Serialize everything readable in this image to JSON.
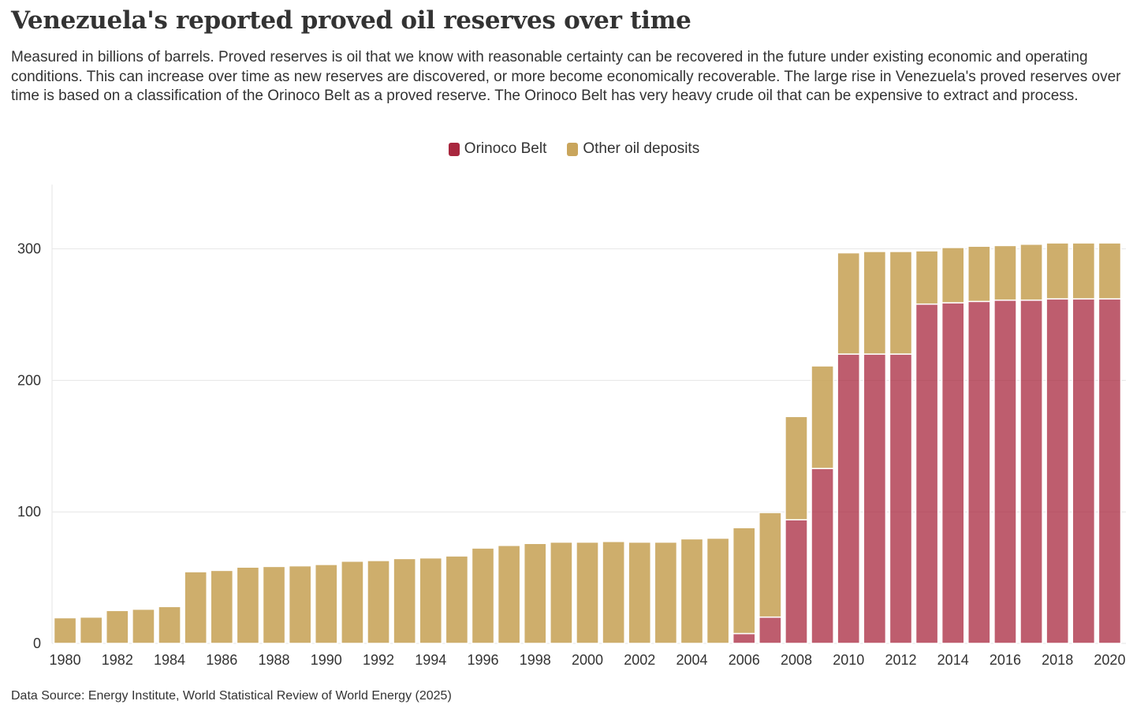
{
  "header": {
    "title": "Venezuela's reported proved oil reserves over time",
    "subtitle": "Measured in billions of barrels. Proved reserves is oil that we know with reasonable certainty can be recovered in the future under existing economic and operating conditions. This can increase over time as new reserves are discovered, or more become economically recoverable. The large rise in Venezuela's proved reserves over time is based on a classification of the Orinoco Belt as a proved reserve. The Orinoco Belt has very heavy crude oil that can be expensive to extract and process."
  },
  "legend": [
    {
      "label": "Orinoco Belt",
      "color": "#a8273e"
    },
    {
      "label": "Other oil deposits",
      "color": "#c9a55c"
    }
  ],
  "footer": {
    "source": "Data Source: Energy Institute, World Statistical Review of World Energy (2025)"
  },
  "chart_data": {
    "type": "bar",
    "stacked": true,
    "title": "Venezuela's reported proved oil reserves over time",
    "xlabel": "",
    "ylabel": "",
    "ylim": [
      0,
      350
    ],
    "yticks": [
      0,
      100,
      200,
      300
    ],
    "grid": true,
    "legend_position": "top-center",
    "x": [
      1980,
      1981,
      1982,
      1983,
      1984,
      1985,
      1986,
      1987,
      1988,
      1989,
      1990,
      1991,
      1992,
      1993,
      1994,
      1995,
      1996,
      1997,
      1998,
      1999,
      2000,
      2001,
      2002,
      2003,
      2004,
      2005,
      2006,
      2007,
      2008,
      2009,
      2010,
      2011,
      2012,
      2013,
      2014,
      2015,
      2016,
      2017,
      2018,
      2019,
      2020
    ],
    "xtick_labels": [
      "1980",
      "1982",
      "1984",
      "1986",
      "1988",
      "1990",
      "1992",
      "1994",
      "1996",
      "1998",
      "2000",
      "2002",
      "2004",
      "2006",
      "2008",
      "2010",
      "2012",
      "2014",
      "2016",
      "2018",
      "2020"
    ],
    "series": [
      {
        "name": "Orinoco Belt",
        "color": "#a8273e",
        "values": [
          0,
          0,
          0,
          0,
          0,
          0,
          0,
          0,
          0,
          0,
          0,
          0,
          0,
          0,
          0,
          0,
          0,
          0,
          0,
          0,
          0,
          0,
          0,
          0,
          0,
          0,
          7.5,
          20,
          94,
          133,
          220,
          220,
          220,
          258,
          259,
          260,
          261,
          261,
          262,
          262,
          262
        ]
      },
      {
        "name": "Other oil deposits",
        "color": "#c9a55c",
        "values": [
          19.5,
          20,
          25,
          26,
          28,
          54.5,
          55.5,
          58,
          58.5,
          59,
          60,
          62.5,
          63,
          64.5,
          65,
          66.5,
          72.5,
          74.5,
          76,
          77,
          77,
          77.5,
          77,
          77,
          79.5,
          80,
          80.5,
          79.5,
          78.5,
          78,
          77,
          78,
          78,
          40.5,
          42,
          42,
          41.5,
          42.5,
          42.5,
          42.5,
          42.5
        ]
      }
    ]
  }
}
